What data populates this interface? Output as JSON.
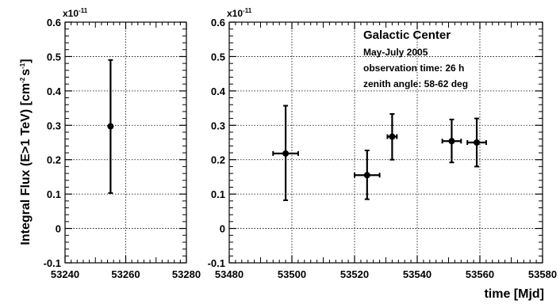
{
  "chart_data": {
    "type": "scatter",
    "ylabel": "Integral Flux (E>1 TeV) [cm^-2 s^-1]",
    "ylabel_parts": [
      "Integral Flux (E>1 TeV) [cm",
      "-2",
      "s",
      "-1",
      "]"
    ],
    "xlabel": "time [Mjd]",
    "y_exponent": {
      "base": "x10",
      "exp": "-11"
    },
    "annotation": {
      "title": "Galactic Center",
      "lines": [
        "May-July 2005",
        "observation time: 26 h",
        "zenith angle: 58-62 deg"
      ]
    },
    "panels": [
      {
        "xlim": [
          53240,
          53280
        ],
        "ylim": [
          -0.1,
          0.6
        ],
        "xticks": [
          53240,
          53260,
          53280
        ],
        "yticks": [
          -0.1,
          0,
          0.1,
          0.2,
          0.3,
          0.4,
          0.5,
          0.6
        ],
        "ytick_labels": [
          "-0.1",
          "0",
          "0.1",
          "0.2",
          "0.3",
          "0.4",
          "0.5",
          "0.6"
        ],
        "grid": true,
        "points": [
          {
            "x": 53255,
            "y": 0.297,
            "xerr": 0.5,
            "ylo": 0.103,
            "yhi": 0.49
          }
        ]
      },
      {
        "xlim": [
          53480,
          53580
        ],
        "ylim": [
          -0.1,
          0.6
        ],
        "xticks": [
          53480,
          53500,
          53520,
          53540,
          53560,
          53580
        ],
        "yticks": [
          -0.1,
          0,
          0.1,
          0.2,
          0.3,
          0.4,
          0.5,
          0.6
        ],
        "ytick_labels": [
          "-0.1",
          "0",
          "0.1",
          "0.2",
          "0.3",
          "0.4",
          "0.5",
          "0.6"
        ],
        "grid": true,
        "points": [
          {
            "x": 53498,
            "y": 0.218,
            "xerr": 4,
            "ylo": 0.082,
            "yhi": 0.357
          },
          {
            "x": 53524,
            "y": 0.155,
            "xerr": 4,
            "ylo": 0.085,
            "yhi": 0.227
          },
          {
            "x": 53532,
            "y": 0.267,
            "xerr": 1.5,
            "ylo": 0.2,
            "yhi": 0.333
          },
          {
            "x": 53551,
            "y": 0.254,
            "xerr": 3,
            "ylo": 0.192,
            "yhi": 0.317
          },
          {
            "x": 53559,
            "y": 0.25,
            "xerr": 3,
            "ylo": 0.18,
            "yhi": 0.32
          }
        ]
      }
    ]
  }
}
